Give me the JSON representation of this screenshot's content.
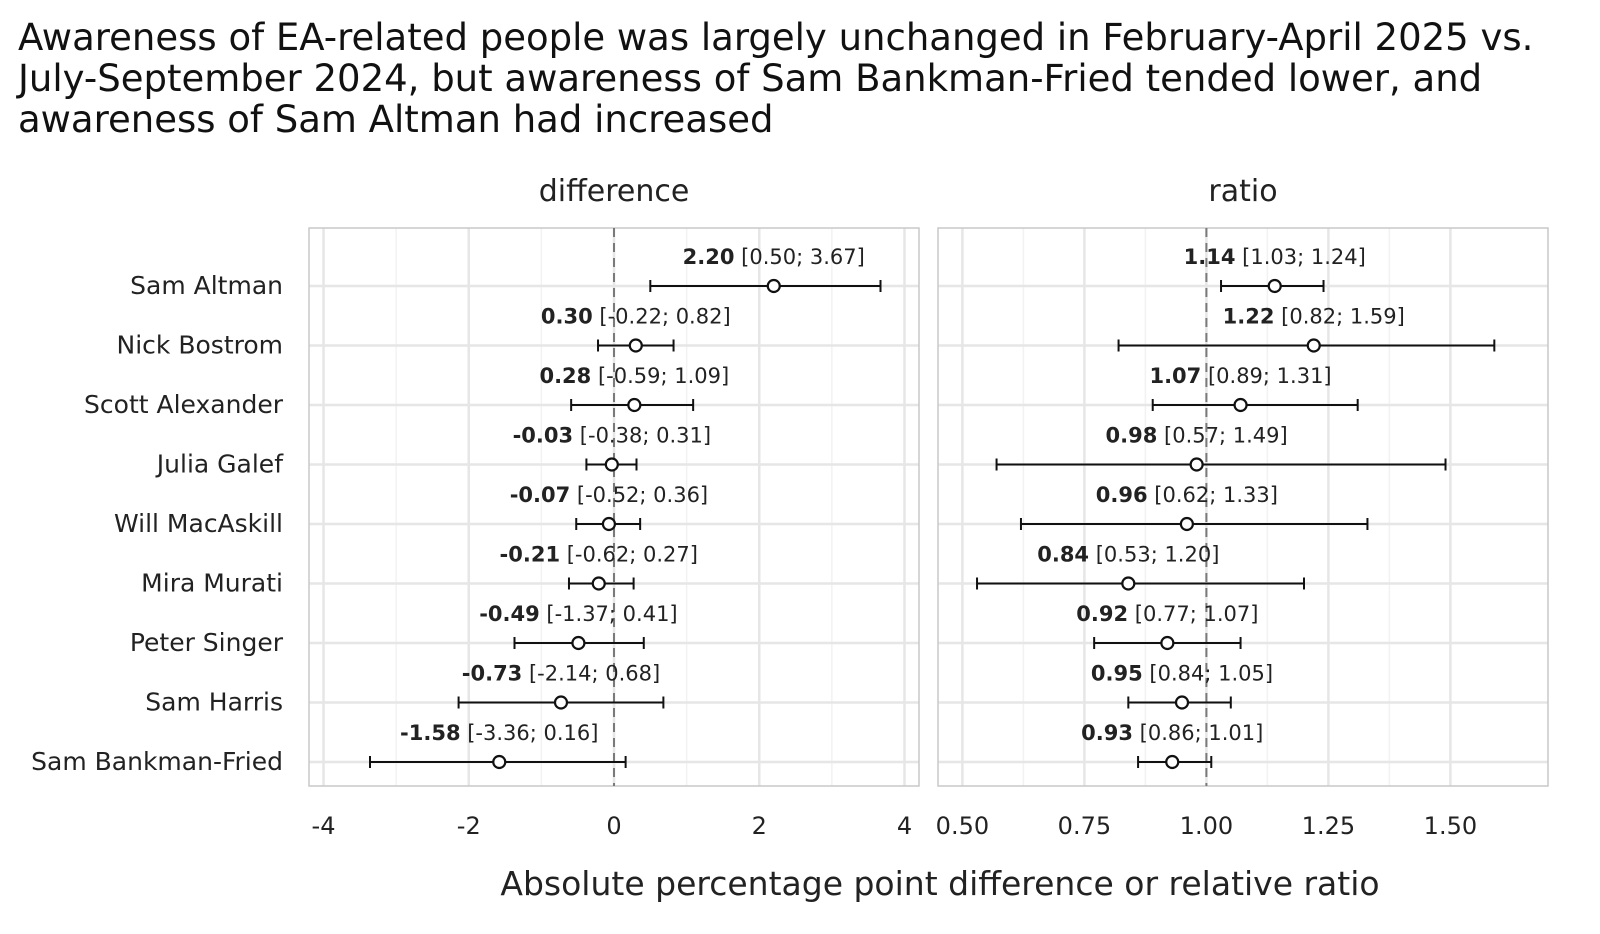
{
  "title": [
    "Awareness of EA-related people was largely unchanged in February-April 2025 vs.",
    "July-September 2024, but awareness of Sam Bankman-Fried tended lower, and",
    "awareness of Sam Altman had increased"
  ],
  "x_axis_title": "Absolute percentage point difference or relative ratio",
  "people": [
    "Sam Altman",
    "Nick Bostrom",
    "Scott Alexander",
    "Julia Galef",
    "Will MacAskill",
    "Mira Murati",
    "Peter Singer",
    "Sam Harris",
    "Sam Bankman-Fried"
  ],
  "chart_data": [
    {
      "type": "forest",
      "facet": "difference",
      "reference_line": 0,
      "xlim": [
        -4.2,
        4.2
      ],
      "ticks": [
        -4,
        -2,
        0,
        2,
        4
      ],
      "tick_labels": [
        "-4",
        "-2",
        "0",
        "2",
        "4"
      ],
      "rows": [
        {
          "label": "Sam Altman",
          "estimate": 2.2,
          "lower": 0.5,
          "upper": 3.67,
          "est_text": "2.20",
          "ci_text": "[0.50; 3.67]"
        },
        {
          "label": "Nick Bostrom",
          "estimate": 0.3,
          "lower": -0.22,
          "upper": 0.82,
          "est_text": "0.30",
          "ci_text": "[-0.22; 0.82]"
        },
        {
          "label": "Scott Alexander",
          "estimate": 0.28,
          "lower": -0.59,
          "upper": 1.09,
          "est_text": "0.28",
          "ci_text": "[-0.59; 1.09]"
        },
        {
          "label": "Julia Galef",
          "estimate": -0.03,
          "lower": -0.38,
          "upper": 0.31,
          "est_text": "-0.03",
          "ci_text": "[-0.38; 0.31]"
        },
        {
          "label": "Will MacAskill",
          "estimate": -0.07,
          "lower": -0.52,
          "upper": 0.36,
          "est_text": "-0.07",
          "ci_text": "[-0.52; 0.36]"
        },
        {
          "label": "Mira Murati",
          "estimate": -0.21,
          "lower": -0.62,
          "upper": 0.27,
          "est_text": "-0.21",
          "ci_text": "[-0.62; 0.27]"
        },
        {
          "label": "Peter Singer",
          "estimate": -0.49,
          "lower": -1.37,
          "upper": 0.41,
          "est_text": "-0.49",
          "ci_text": "[-1.37; 0.41]"
        },
        {
          "label": "Sam Harris",
          "estimate": -0.73,
          "lower": -2.14,
          "upper": 0.68,
          "est_text": "-0.73",
          "ci_text": "[-2.14; 0.68]"
        },
        {
          "label": "Sam Bankman-Fried",
          "estimate": -1.58,
          "lower": -3.36,
          "upper": 0.16,
          "est_text": "-1.58",
          "ci_text": "[-3.36; 0.16]"
        }
      ]
    },
    {
      "type": "forest",
      "facet": "ratio",
      "reference_line": 1,
      "xlim": [
        0.45,
        1.7
      ],
      "ticks": [
        0.5,
        0.75,
        1.0,
        1.25,
        1.5
      ],
      "tick_labels": [
        "0.50",
        "0.75",
        "1.00",
        "1.25",
        "1.50"
      ],
      "rows": [
        {
          "label": "Sam Altman",
          "estimate": 1.14,
          "lower": 1.03,
          "upper": 1.24,
          "est_text": "1.14",
          "ci_text": "[1.03; 1.24]"
        },
        {
          "label": "Nick Bostrom",
          "estimate": 1.22,
          "lower": 0.82,
          "upper": 1.59,
          "est_text": "1.22",
          "ci_text": "[0.82; 1.59]"
        },
        {
          "label": "Scott Alexander",
          "estimate": 1.07,
          "lower": 0.89,
          "upper": 1.31,
          "est_text": "1.07",
          "ci_text": "[0.89; 1.31]"
        },
        {
          "label": "Julia Galef",
          "estimate": 0.98,
          "lower": 0.57,
          "upper": 1.49,
          "est_text": "0.98",
          "ci_text": "[0.57; 1.49]"
        },
        {
          "label": "Will MacAskill",
          "estimate": 0.96,
          "lower": 0.62,
          "upper": 1.33,
          "est_text": "0.96",
          "ci_text": "[0.62; 1.33]"
        },
        {
          "label": "Mira Murati",
          "estimate": 0.84,
          "lower": 0.53,
          "upper": 1.2,
          "est_text": "0.84",
          "ci_text": "[0.53; 1.20]"
        },
        {
          "label": "Peter Singer",
          "estimate": 0.92,
          "lower": 0.77,
          "upper": 1.07,
          "est_text": "0.92",
          "ci_text": "[0.77; 1.07]"
        },
        {
          "label": "Sam Harris",
          "estimate": 0.95,
          "lower": 0.84,
          "upper": 1.05,
          "est_text": "0.95",
          "ci_text": "[0.84; 1.05]"
        },
        {
          "label": "Sam Bankman-Fried",
          "estimate": 0.93,
          "lower": 0.86,
          "upper": 1.01,
          "est_text": "0.93",
          "ci_text": "[0.86; 1.01]"
        }
      ]
    }
  ]
}
